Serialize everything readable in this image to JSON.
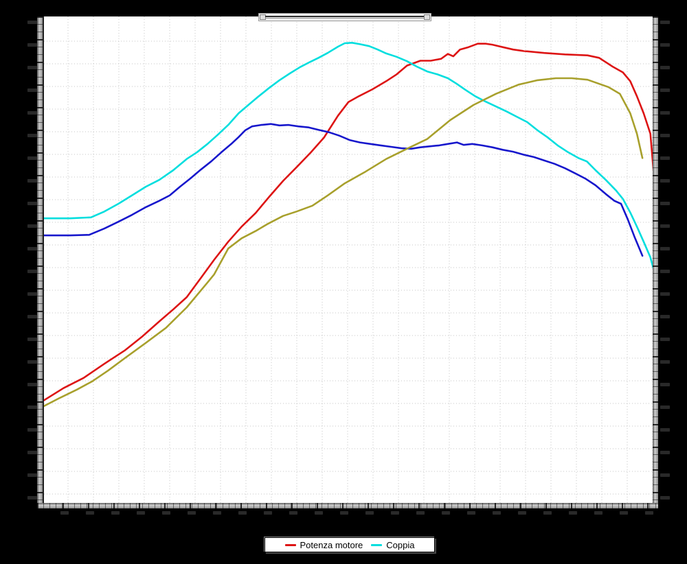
{
  "window": {
    "background_color": "#000000",
    "plot_background": "#ffffff"
  },
  "legend": {
    "items": [
      {
        "label": "Potenza motore",
        "color": "#dd1414"
      },
      {
        "label": "Coppia",
        "color": "#00dede"
      }
    ]
  },
  "chart_data": {
    "type": "line",
    "title": "",
    "xlabel": "",
    "ylabel": "",
    "xlim": [
      0,
      100
    ],
    "ylim": [
      0,
      100
    ],
    "axis_units": "normalized 0-100; tick labels in screenshot are tiny dark-gray glyphs on black, not legible",
    "grid": "dotted light-gray, on",
    "grid_color": "#c5c5c5",
    "legend_position": "bottom-center",
    "series": [
      {
        "name": "Potenza motore",
        "color": "#dd1414",
        "points": [
          [
            0,
            21.1
          ],
          [
            3.2,
            23.6
          ],
          [
            6.5,
            25.7
          ],
          [
            9.9,
            28.6
          ],
          [
            13.3,
            31.4
          ],
          [
            16.1,
            34.2
          ],
          [
            18.9,
            37.3
          ],
          [
            21.2,
            39.8
          ],
          [
            23.4,
            42.3
          ],
          [
            25.7,
            46.2
          ],
          [
            27.9,
            50.0
          ],
          [
            30.2,
            53.7
          ],
          [
            32.4,
            56.8
          ],
          [
            34.7,
            59.6
          ],
          [
            36.9,
            62.9
          ],
          [
            39.2,
            66.2
          ],
          [
            41.4,
            69.0
          ],
          [
            43.7,
            72.0
          ],
          [
            45.9,
            75.1
          ],
          [
            48.2,
            79.6
          ],
          [
            49.9,
            82.4
          ],
          [
            51.6,
            83.6
          ],
          [
            53.8,
            85.0
          ],
          [
            56.1,
            86.7
          ],
          [
            57.8,
            88.1
          ],
          [
            59.5,
            89.9
          ],
          [
            61.7,
            90.9
          ],
          [
            63.4,
            90.9
          ],
          [
            65.1,
            91.3
          ],
          [
            66.2,
            92.3
          ],
          [
            67.1,
            91.8
          ],
          [
            68.2,
            93.2
          ],
          [
            69.6,
            93.7
          ],
          [
            71.1,
            94.4
          ],
          [
            72.4,
            94.4
          ],
          [
            73.5,
            94.2
          ],
          [
            75.2,
            93.7
          ],
          [
            76.9,
            93.2
          ],
          [
            78.6,
            92.9
          ],
          [
            82,
            92.5
          ],
          [
            85.4,
            92.2
          ],
          [
            89.1,
            92.0
          ],
          [
            91,
            91.5
          ],
          [
            93.2,
            89.7
          ],
          [
            94.9,
            88.5
          ],
          [
            96.1,
            86.7
          ],
          [
            97.2,
            83.6
          ],
          [
            98.3,
            80.1
          ],
          [
            99.4,
            75.9
          ],
          [
            100,
            67
          ]
        ]
      },
      {
        "name": "Coppia",
        "color": "#00dede",
        "points": [
          [
            0,
            58.5
          ],
          [
            4.3,
            58.5
          ],
          [
            7.7,
            58.7
          ],
          [
            9.9,
            59.9
          ],
          [
            12.2,
            61.5
          ],
          [
            14.4,
            63.2
          ],
          [
            16.7,
            65.0
          ],
          [
            18.9,
            66.4
          ],
          [
            21.2,
            68.4
          ],
          [
            23.4,
            70.7
          ],
          [
            25.1,
            72.1
          ],
          [
            26.8,
            73.8
          ],
          [
            28.5,
            75.7
          ],
          [
            30.2,
            77.7
          ],
          [
            31.9,
            80.1
          ],
          [
            33.6,
            81.9
          ],
          [
            35.2,
            83.6
          ],
          [
            36.9,
            85.3
          ],
          [
            38.6,
            86.9
          ],
          [
            40.3,
            88.3
          ],
          [
            42,
            89.6
          ],
          [
            43.7,
            90.7
          ],
          [
            45,
            91.5
          ],
          [
            46.5,
            92.5
          ],
          [
            48.2,
            93.8
          ],
          [
            49.3,
            94.5
          ],
          [
            50.5,
            94.6
          ],
          [
            51.8,
            94.3
          ],
          [
            53.3,
            93.9
          ],
          [
            54.7,
            93.2
          ],
          [
            56.1,
            92.4
          ],
          [
            57.8,
            91.7
          ],
          [
            59.5,
            90.8
          ],
          [
            61.1,
            89.7
          ],
          [
            62.8,
            88.7
          ],
          [
            64.5,
            88.1
          ],
          [
            66.2,
            87.3
          ],
          [
            67.6,
            86.2
          ],
          [
            69,
            85.0
          ],
          [
            70.7,
            83.6
          ],
          [
            72.4,
            82.5
          ],
          [
            74.1,
            81.5
          ],
          [
            75.8,
            80.5
          ],
          [
            77.5,
            79.4
          ],
          [
            79.2,
            78.3
          ],
          [
            80.9,
            76.6
          ],
          [
            82.5,
            75.2
          ],
          [
            84.2,
            73.5
          ],
          [
            85.9,
            72.1
          ],
          [
            87.6,
            70.9
          ],
          [
            89,
            70.2
          ],
          [
            90.4,
            68.4
          ],
          [
            92.1,
            66.4
          ],
          [
            93.8,
            64.2
          ],
          [
            94.9,
            62.5
          ],
          [
            96.1,
            59.7
          ],
          [
            97.2,
            56.8
          ],
          [
            98.3,
            53.7
          ],
          [
            99.4,
            50.5
          ],
          [
            100,
            47.7
          ]
        ]
      },
      {
        "name": "unlabeled-blue-curve",
        "color": "#1717cc",
        "points": [
          [
            0,
            55.0
          ],
          [
            4.3,
            55.0
          ],
          [
            7.4,
            55.1
          ],
          [
            9.9,
            56.4
          ],
          [
            12.2,
            57.8
          ],
          [
            14.4,
            59.2
          ],
          [
            16.7,
            60.8
          ],
          [
            18.9,
            62.1
          ],
          [
            20.6,
            63.2
          ],
          [
            22.3,
            65.0
          ],
          [
            24,
            66.7
          ],
          [
            25.7,
            68.5
          ],
          [
            27.4,
            70.2
          ],
          [
            29.1,
            72.1
          ],
          [
            30.7,
            73.8
          ],
          [
            31.9,
            75.2
          ],
          [
            33,
            76.6
          ],
          [
            34.1,
            77.4
          ],
          [
            35.6,
            77.7
          ],
          [
            37.2,
            77.9
          ],
          [
            38.6,
            77.6
          ],
          [
            40.1,
            77.7
          ],
          [
            41.7,
            77.4
          ],
          [
            43.4,
            77.2
          ],
          [
            45,
            76.7
          ],
          [
            46.7,
            76.2
          ],
          [
            48.4,
            75.5
          ],
          [
            50.1,
            74.6
          ],
          [
            51.8,
            74.1
          ],
          [
            53.5,
            73.8
          ],
          [
            55.2,
            73.5
          ],
          [
            56.9,
            73.2
          ],
          [
            58.6,
            72.9
          ],
          [
            60.2,
            72.8
          ],
          [
            61.7,
            73.1
          ],
          [
            63.2,
            73.3
          ],
          [
            64.8,
            73.5
          ],
          [
            66.2,
            73.8
          ],
          [
            67.7,
            74.1
          ],
          [
            68.8,
            73.6
          ],
          [
            70.2,
            73.8
          ],
          [
            71.8,
            73.5
          ],
          [
            73.5,
            73.1
          ],
          [
            75.2,
            72.6
          ],
          [
            76.9,
            72.2
          ],
          [
            78.6,
            71.6
          ],
          [
            80.3,
            71.1
          ],
          [
            82,
            70.4
          ],
          [
            83.7,
            69.7
          ],
          [
            85.4,
            68.8
          ],
          [
            87,
            67.8
          ],
          [
            88.7,
            66.7
          ],
          [
            90.4,
            65.3
          ],
          [
            92.1,
            63.5
          ],
          [
            93.5,
            62.1
          ],
          [
            94.6,
            61.5
          ],
          [
            95.7,
            58.3
          ],
          [
            96.8,
            54.7
          ],
          [
            98.1,
            50.8
          ]
        ]
      },
      {
        "name": "unlabeled-olive-curve",
        "color": "#a8a02c",
        "points": [
          [
            0,
            19.9
          ],
          [
            2.6,
            21.6
          ],
          [
            5.4,
            23.3
          ],
          [
            7.9,
            25.0
          ],
          [
            10.5,
            27.2
          ],
          [
            13.3,
            29.8
          ],
          [
            16.7,
            32.9
          ],
          [
            20,
            36.0
          ],
          [
            23.4,
            40.2
          ],
          [
            26.8,
            45.3
          ],
          [
            27.9,
            47.0
          ],
          [
            30.2,
            52.3
          ],
          [
            32.4,
            54.4
          ],
          [
            34.7,
            55.9
          ],
          [
            36.6,
            57.3
          ],
          [
            39.2,
            59.0
          ],
          [
            41.4,
            59.9
          ],
          [
            44,
            61.1
          ],
          [
            46.5,
            63.2
          ],
          [
            49.3,
            65.7
          ],
          [
            52.7,
            68.1
          ],
          [
            56.1,
            70.7
          ],
          [
            59.5,
            72.8
          ],
          [
            62.8,
            74.8
          ],
          [
            66.6,
            78.7
          ],
          [
            70.4,
            81.8
          ],
          [
            74.1,
            84.1
          ],
          [
            77.8,
            86.0
          ],
          [
            80.9,
            86.9
          ],
          [
            83.9,
            87.3
          ],
          [
            86.5,
            87.3
          ],
          [
            89.1,
            87.0
          ],
          [
            92.5,
            85.5
          ],
          [
            94.4,
            84.1
          ],
          [
            96.1,
            80.1
          ],
          [
            97.2,
            75.9
          ],
          [
            98.1,
            70.9
          ]
        ]
      }
    ]
  }
}
